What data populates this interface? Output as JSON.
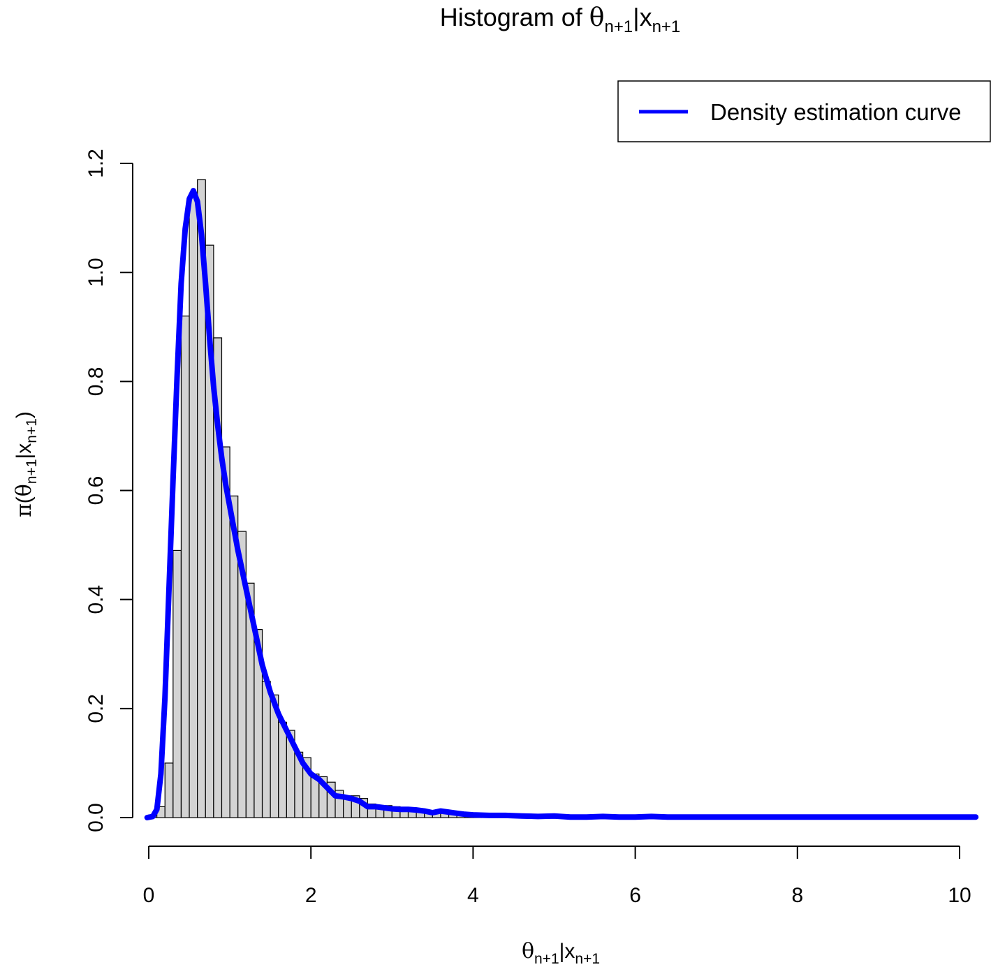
{
  "chart_data": {
    "type": "bar",
    "title": {
      "prefix": "Histogram of ",
      "sym1": "θ",
      "sub1": "n+1",
      "bar": "|",
      "sym2": "x",
      "sub2": "n+1"
    },
    "xlabel": {
      "sym1": "θ",
      "sub1": "n+1",
      "bar": "|",
      "sym2": "x",
      "sub2": "n+1"
    },
    "ylabel": {
      "pi": "π",
      "open": "(",
      "sym1": "θ",
      "sub1": "n+1",
      "bar": "|",
      "sym2": "x",
      "sub2": "n+1",
      "close": ")"
    },
    "xlim": [
      0,
      10.2
    ],
    "ylim": [
      0,
      1.2
    ],
    "x_ticks": [
      0,
      2,
      4,
      6,
      8,
      10
    ],
    "x_tick_labels": [
      "0",
      "2",
      "4",
      "6",
      "8",
      "10"
    ],
    "y_ticks": [
      0,
      0.2,
      0.4,
      0.6,
      0.8,
      1.0,
      1.2
    ],
    "y_tick_labels": [
      "0.0",
      "0.2",
      "0.4",
      "0.6",
      "0.8",
      "1.0",
      "1.2"
    ],
    "grid": false,
    "legend_position": "top-right",
    "histogram": {
      "bin_width": 0.1,
      "bin_start": 0.0,
      "values": [
        0.005,
        0.02,
        0.1,
        0.49,
        0.92,
        1.14,
        1.17,
        1.05,
        0.88,
        0.68,
        0.59,
        0.525,
        0.43,
        0.345,
        0.25,
        0.225,
        0.175,
        0.16,
        0.12,
        0.11,
        0.08,
        0.075,
        0.065,
        0.05,
        0.04,
        0.04,
        0.035,
        0.025,
        0.02,
        0.022,
        0.02,
        0.018,
        0.018,
        0.015,
        0.012,
        0.01,
        0.01,
        0.012,
        0.01,
        0.008,
        0.006,
        0.004,
        0.004,
        0.003,
        0.003,
        0.002,
        0.002,
        0.002,
        0.002,
        0.002,
        0.001,
        0.002,
        0.002,
        0.001,
        0.001,
        0.001,
        0.001,
        0.001,
        0.001,
        0.001,
        0.001,
        0.001,
        0.001,
        0.001,
        0.001,
        0.001,
        0.001,
        0.001,
        0.001,
        0.001,
        0.001,
        0.001,
        0.001,
        0.001,
        0.001,
        0.001,
        0.001,
        0.001,
        0.001,
        0.001,
        0.001,
        0.001,
        0.001,
        0.001,
        0.001,
        0.001,
        0.001,
        0.001,
        0.001,
        0.001,
        0.001,
        0.001,
        0.001,
        0.001,
        0.001,
        0.001,
        0.001,
        0.001,
        0.001,
        0.001,
        0.001,
        0.001
      ],
      "fill_color": "#d3d3d3",
      "edge_color": "#000000"
    },
    "series": [
      {
        "name": "Density estimation curve",
        "color": "#0000ff",
        "x": [
          -0.02,
          0.05,
          0.1,
          0.15,
          0.2,
          0.25,
          0.3,
          0.35,
          0.4,
          0.45,
          0.5,
          0.55,
          0.6,
          0.65,
          0.7,
          0.75,
          0.8,
          0.85,
          0.9,
          0.95,
          1.0,
          1.1,
          1.2,
          1.3,
          1.4,
          1.5,
          1.6,
          1.7,
          1.8,
          1.9,
          2.0,
          2.1,
          2.2,
          2.3,
          2.4,
          2.5,
          2.6,
          2.7,
          2.8,
          2.9,
          3.0,
          3.1,
          3.2,
          3.3,
          3.4,
          3.5,
          3.6,
          3.7,
          3.8,
          3.9,
          4.0,
          4.2,
          4.4,
          4.6,
          4.8,
          5.0,
          5.2,
          5.4,
          5.6,
          5.8,
          6.0,
          6.2,
          6.4,
          6.6,
          6.8,
          7.0,
          7.5,
          8.0,
          8.5,
          9.0,
          9.5,
          10.0,
          10.2
        ],
        "y": [
          0.0,
          0.002,
          0.015,
          0.08,
          0.22,
          0.42,
          0.62,
          0.81,
          0.98,
          1.08,
          1.135,
          1.15,
          1.13,
          1.07,
          0.98,
          0.88,
          0.79,
          0.72,
          0.66,
          0.61,
          0.57,
          0.49,
          0.42,
          0.35,
          0.28,
          0.23,
          0.19,
          0.16,
          0.13,
          0.1,
          0.08,
          0.07,
          0.055,
          0.04,
          0.038,
          0.035,
          0.03,
          0.02,
          0.02,
          0.018,
          0.016,
          0.015,
          0.015,
          0.014,
          0.012,
          0.009,
          0.012,
          0.01,
          0.008,
          0.006,
          0.005,
          0.004,
          0.004,
          0.003,
          0.002,
          0.003,
          0.001,
          0.001,
          0.002,
          0.001,
          0.001,
          0.002,
          0.001,
          0.001,
          0.001,
          0.001,
          0.001,
          0.001,
          0.001,
          0.001,
          0.001,
          0.001,
          0.001
        ]
      }
    ]
  }
}
